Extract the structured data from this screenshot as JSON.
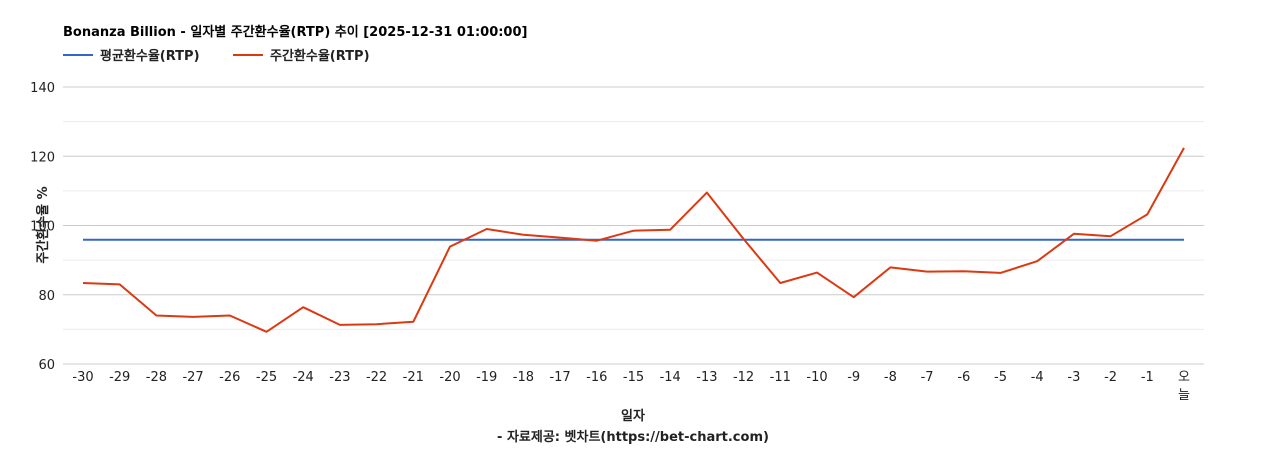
{
  "chart_data": {
    "type": "line",
    "title": "Bonanza Billion - 일자별 주간환수율(RTP) 추이 [2025-12-31 01:00:00]",
    "xlabel": "일자",
    "ylabel": "주간환수율 %",
    "source": "- 자료제공: 벳차트(https://bet-chart.com)",
    "categories": [
      "-30",
      "-29",
      "-28",
      "-27",
      "-26",
      "-25",
      "-24",
      "-23",
      "-22",
      "-21",
      "-20",
      "-19",
      "-18",
      "-17",
      "-16",
      "-15",
      "-14",
      "-13",
      "-12",
      "-11",
      "-10",
      "-9",
      "-8",
      "-7",
      "-6",
      "-5",
      "-4",
      "-3",
      "-2",
      "-1",
      "오늘"
    ],
    "ylim": [
      60,
      140
    ],
    "yticks": [
      "60",
      "80",
      "100",
      "120",
      "140"
    ],
    "grid": true,
    "legend_position": "top-left",
    "series": [
      {
        "name": "평균환수율(RTP)",
        "color": "#3366cc",
        "values": [
          95.9,
          95.9,
          95.9,
          95.9,
          95.9,
          95.9,
          95.9,
          95.9,
          95.9,
          95.9,
          95.9,
          95.9,
          95.9,
          95.9,
          95.9,
          95.9,
          95.9,
          95.9,
          95.9,
          95.9,
          95.9,
          95.9,
          95.9,
          95.9,
          95.9,
          95.9,
          95.9,
          95.9,
          95.9,
          95.9,
          95.9
        ]
      },
      {
        "name": "주간환수율(RTP)",
        "color": "#dc3912",
        "values": [
          83.4,
          83.0,
          74.0,
          73.6,
          74.0,
          69.3,
          76.4,
          71.3,
          71.5,
          72.2,
          93.9,
          99.0,
          97.3,
          96.5,
          95.6,
          98.5,
          98.8,
          109.5,
          96.1,
          83.4,
          86.4,
          79.3,
          87.9,
          86.7,
          86.8,
          86.3,
          89.7,
          97.6,
          96.9,
          103.2,
          122.4
        ]
      }
    ]
  }
}
